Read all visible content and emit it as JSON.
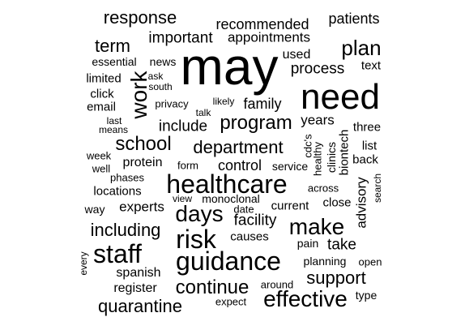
{
  "words": {
    "may": "may",
    "need": "need",
    "healthcare": "healthcare",
    "guidance": "guidance",
    "staff": "staff",
    "risk": "risk",
    "effective": "effective",
    "make": "make",
    "days": "days",
    "program": "program",
    "plan": "plan",
    "work": "work",
    "school": "school",
    "continue": "continue",
    "department": "department",
    "including": "including",
    "quarantine": "quarantine",
    "support": "support",
    "response": "response",
    "term": "term",
    "important": "important",
    "recommended": "recommended",
    "appointments": "appointments",
    "patients": "patients",
    "process": "process",
    "used": "used",
    "text": "text",
    "news": "news",
    "essential": "essential",
    "ask": "ask",
    "south": "south",
    "limited": "limited",
    "click": "click",
    "email": "email",
    "last": "last",
    "means": "means",
    "privacy": "privacy",
    "likely": "likely",
    "talk": "talk",
    "family": "family",
    "include": "include",
    "years": "years",
    "cdcs": "cdc's",
    "healthy": "healthy",
    "clinics": "clinics",
    "biontech": "biontech",
    "three": "three",
    "list": "list",
    "back": "back",
    "week": "week",
    "well": "well",
    "protein": "protein",
    "form": "form",
    "control": "control",
    "service": "service",
    "phases": "phases",
    "locations": "locations",
    "across": "across",
    "search": "search",
    "view": "view",
    "monoclonal": "monoclonal",
    "current": "current",
    "close": "close",
    "advisory": "advisory",
    "way": "way",
    "experts": "experts",
    "date": "date",
    "facility": "facility",
    "causes": "causes",
    "pain": "pain",
    "take": "take",
    "every": "every",
    "planning": "planning",
    "open": "open",
    "spanish": "spanish",
    "register": "register",
    "around": "around",
    "expect": "expect",
    "type": "type"
  }
}
